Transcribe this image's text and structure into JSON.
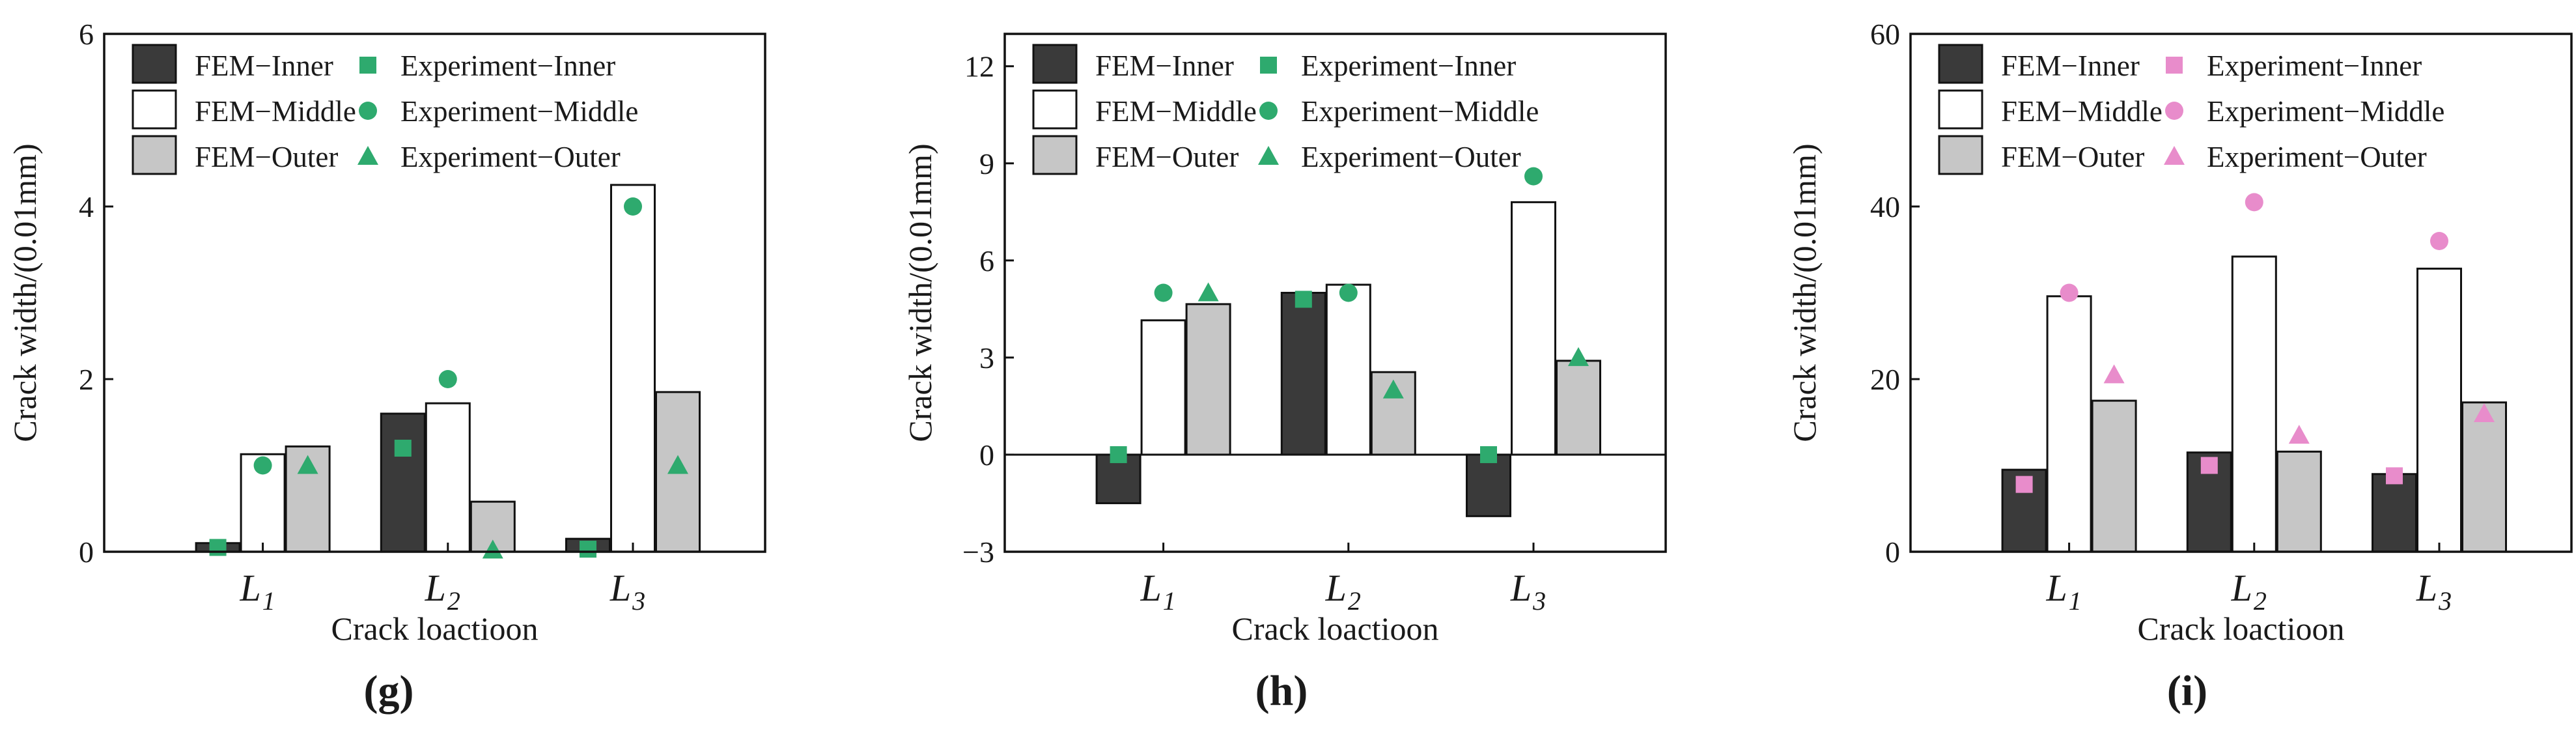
{
  "chart_data": [
    {
      "type": "bar",
      "panel_label": "(g)",
      "panel_letter": "g",
      "xlabel": "Crack loactioon",
      "ylabel": "Crack width/(0.01mm)",
      "categories": [
        "L1",
        "L2",
        "L3"
      ],
      "category_display": [
        {
          "base": "L",
          "sub": "1"
        },
        {
          "base": "L",
          "sub": "2"
        },
        {
          "base": "L",
          "sub": "3"
        }
      ],
      "ylim": [
        0,
        6
      ],
      "yticks": [
        0,
        2,
        4,
        6
      ],
      "series": [
        {
          "name": "FEM−Inner",
          "kind": "bar",
          "fill": "#3a3a3a",
          "values": [
            0.1,
            1.6,
            0.15
          ]
        },
        {
          "name": "FEM−Middle",
          "kind": "bar",
          "fill": "#ffffff",
          "values": [
            1.13,
            1.72,
            4.25
          ]
        },
        {
          "name": "FEM−Outer",
          "kind": "bar",
          "fill": "#c6c6c6",
          "values": [
            1.22,
            0.58,
            1.85
          ]
        },
        {
          "name": "Experiment−Inner",
          "kind": "marker",
          "marker": "square",
          "color": "#2eaa6e",
          "values": [
            0.05,
            1.2,
            0.03
          ]
        },
        {
          "name": "Experiment−Middle",
          "kind": "marker",
          "marker": "circle",
          "color": "#2eaa6e",
          "values": [
            1.0,
            2.0,
            4.0
          ]
        },
        {
          "name": "Experiment−Outer",
          "kind": "marker",
          "marker": "triangle",
          "color": "#2eaa6e",
          "values": [
            1.0,
            0.02,
            1.0
          ]
        }
      ]
    },
    {
      "type": "bar",
      "panel_label": "(h)",
      "panel_letter": "h",
      "xlabel": "Crack loactioon",
      "ylabel": "Crack width/(0.01mm)",
      "categories": [
        "L1",
        "L2",
        "L3"
      ],
      "category_display": [
        {
          "base": "L",
          "sub": "1"
        },
        {
          "base": "L",
          "sub": "2"
        },
        {
          "base": "L",
          "sub": "3"
        }
      ],
      "ylim": [
        -3,
        13
      ],
      "yticks": [
        -3,
        0,
        3,
        6,
        9,
        12
      ],
      "series": [
        {
          "name": "FEM−Inner",
          "kind": "bar",
          "fill": "#3a3a3a",
          "values": [
            -1.5,
            5.0,
            -1.9
          ]
        },
        {
          "name": "FEM−Middle",
          "kind": "bar",
          "fill": "#ffffff",
          "values": [
            4.15,
            5.25,
            7.8
          ]
        },
        {
          "name": "FEM−Outer",
          "kind": "bar",
          "fill": "#c6c6c6",
          "values": [
            4.65,
            2.55,
            2.9
          ]
        },
        {
          "name": "Experiment−Inner",
          "kind": "marker",
          "marker": "square",
          "color": "#2eaa6e",
          "values": [
            0.0,
            4.8,
            0.0
          ]
        },
        {
          "name": "Experiment−Middle",
          "kind": "marker",
          "marker": "circle",
          "color": "#2eaa6e",
          "values": [
            5.0,
            5.0,
            8.6
          ]
        },
        {
          "name": "Experiment−Outer",
          "kind": "marker",
          "marker": "triangle",
          "color": "#2eaa6e",
          "values": [
            5.0,
            2.0,
            3.0
          ]
        }
      ]
    },
    {
      "type": "bar",
      "panel_label": "(i)",
      "panel_letter": "i",
      "xlabel": "Crack loactioon",
      "ylabel": "Crack width/(0.01mm)",
      "categories": [
        "L1",
        "L2",
        "L3"
      ],
      "category_display": [
        {
          "base": "L",
          "sub": "1"
        },
        {
          "base": "L",
          "sub": "2"
        },
        {
          "base": "L",
          "sub": "3"
        }
      ],
      "ylim": [
        0,
        60
      ],
      "yticks": [
        0,
        20,
        40,
        60
      ],
      "series": [
        {
          "name": "FEM−Inner",
          "kind": "bar",
          "fill": "#3a3a3a",
          "values": [
            9.5,
            11.5,
            9.0
          ]
        },
        {
          "name": "FEM−Middle",
          "kind": "bar",
          "fill": "#ffffff",
          "values": [
            29.6,
            34.2,
            32.8
          ]
        },
        {
          "name": "FEM−Outer",
          "kind": "bar",
          "fill": "#c6c6c6",
          "values": [
            17.5,
            11.6,
            17.3
          ]
        },
        {
          "name": "Experiment−Inner",
          "kind": "marker",
          "marker": "square",
          "color": "#e88ccb",
          "values": [
            7.8,
            10.0,
            8.8
          ]
        },
        {
          "name": "Experiment−Middle",
          "kind": "marker",
          "marker": "circle",
          "color": "#e88ccb",
          "values": [
            30.0,
            40.5,
            36.0
          ]
        },
        {
          "name": "Experiment−Outer",
          "kind": "marker",
          "marker": "triangle",
          "color": "#e88ccb",
          "values": [
            20.5,
            13.5,
            16.0
          ]
        }
      ]
    }
  ]
}
